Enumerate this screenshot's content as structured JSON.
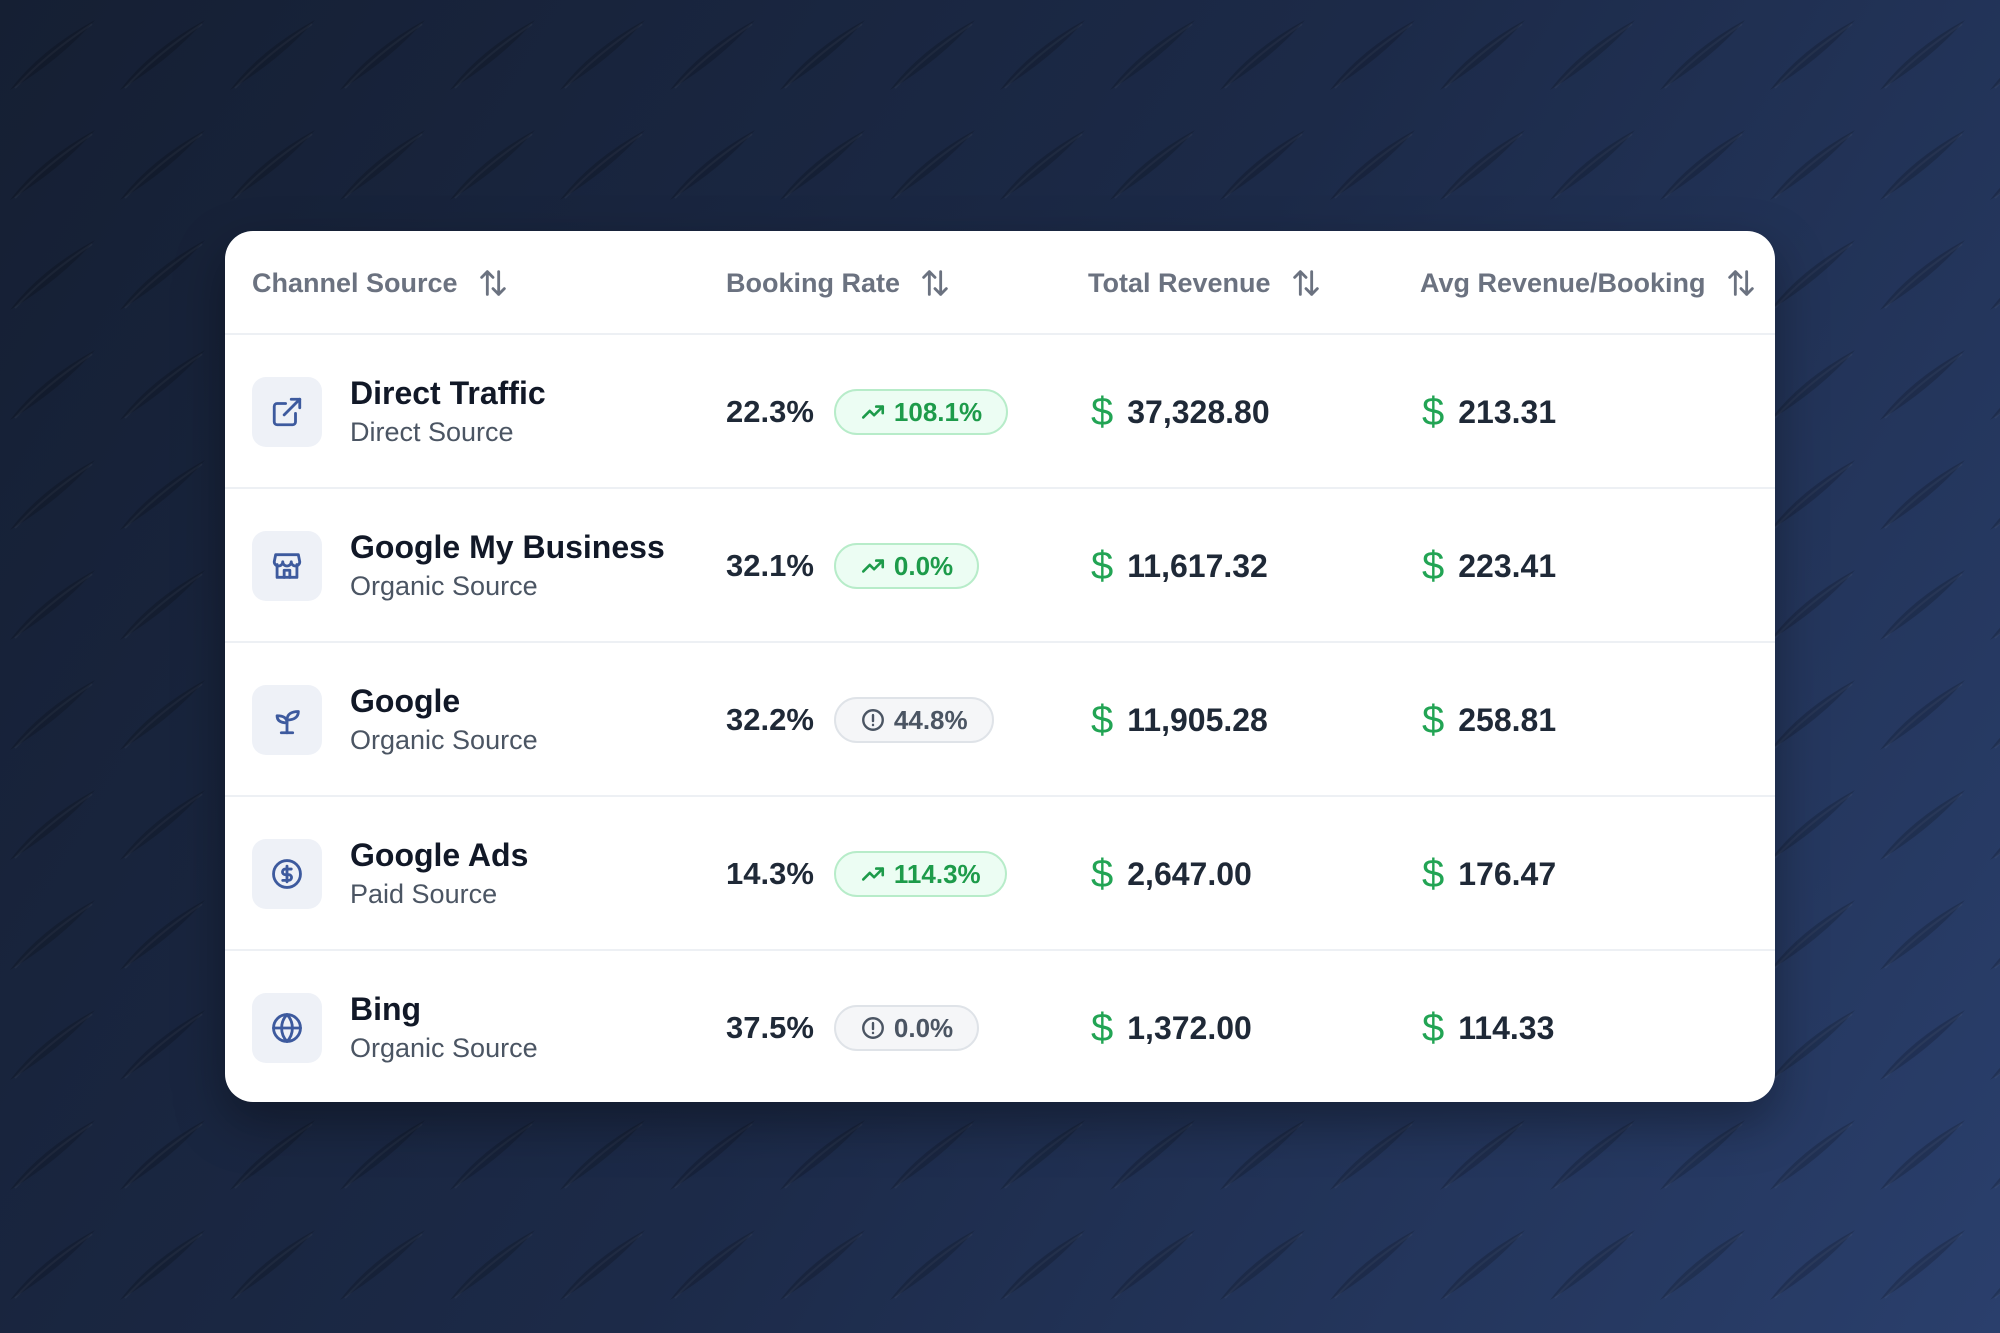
{
  "table": {
    "columns": [
      {
        "label": "Channel Source",
        "sort_icon": "sort-arrows-icon"
      },
      {
        "label": "Booking Rate",
        "sort_icon": "sort-arrows-icon"
      },
      {
        "label": "Total Revenue",
        "sort_icon": "sort-arrows-icon"
      },
      {
        "label": "Avg Revenue/Booking",
        "sort_icon": "sort-arrows-icon"
      }
    ],
    "currency_symbol": "$",
    "rows": [
      {
        "icon": "external-link-icon",
        "name": "Direct Traffic",
        "source": "Direct Source",
        "booking_rate": "22.3%",
        "change": "108.1%",
        "change_type": "up",
        "total_revenue": "37,328.80",
        "avg_revenue": "213.31"
      },
      {
        "icon": "store-icon",
        "name": "Google My Business",
        "source": "Organic Source",
        "booking_rate": "32.1%",
        "change": "0.0%",
        "change_type": "up",
        "total_revenue": "11,617.32",
        "avg_revenue": "223.41"
      },
      {
        "icon": "sprout-icon",
        "name": "Google",
        "source": "Organic Source",
        "booking_rate": "32.2%",
        "change": "44.8%",
        "change_type": "warn",
        "total_revenue": "11,905.28",
        "avg_revenue": "258.81"
      },
      {
        "icon": "dollar-circle-icon",
        "name": "Google Ads",
        "source": "Paid Source",
        "booking_rate": "14.3%",
        "change": "114.3%",
        "change_type": "up",
        "total_revenue": "2,647.00",
        "avg_revenue": "176.47"
      },
      {
        "icon": "globe-icon",
        "name": "Bing",
        "source": "Organic Source",
        "booking_rate": "37.5%",
        "change": "0.0%",
        "change_type": "warn",
        "total_revenue": "1,372.00",
        "avg_revenue": "114.33"
      }
    ]
  },
  "colors": {
    "accent_green": "#22a454",
    "icon_blue": "#3d5a9e",
    "badge_up_text": "#1d9b4a",
    "badge_warn_text": "#4b5563"
  }
}
